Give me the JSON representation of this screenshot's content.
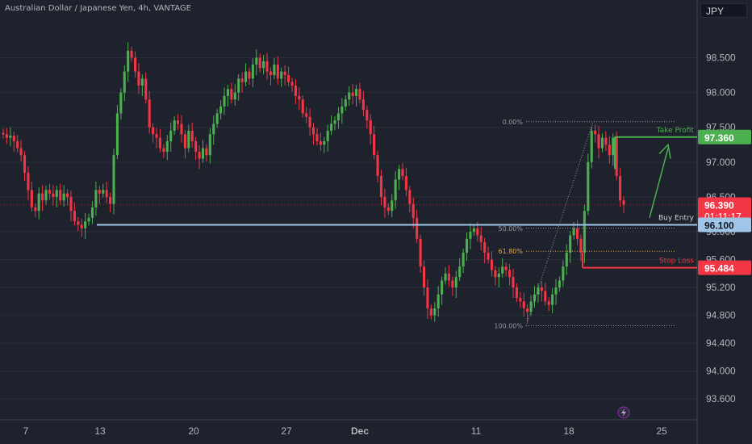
{
  "header": {
    "symbol_title": "Australian Dollar / Japanese Yen, 4h, VANTAGE",
    "currency": "JPY"
  },
  "colors": {
    "background": "#1e222d",
    "up": "#4caf50",
    "down": "#f23645",
    "buy_entry_line": "#9fc5e8",
    "take_profit": "#4caf50",
    "stop_loss": "#f23645",
    "fib_orange": "#e8a33d",
    "text": "#b2b5be"
  },
  "chart_data": {
    "type": "candlestick",
    "ylim": [
      93.3,
      99.05
    ],
    "y_ticks": [
      "98.500",
      "98.000",
      "97.500",
      "97.000",
      "96.500",
      "96.000",
      "95.600",
      "95.200",
      "94.800",
      "94.400",
      "94.000",
      "93.600"
    ],
    "x_ticks": [
      "7",
      "13",
      "20",
      "27",
      "Dec",
      "11",
      "18",
      "25"
    ],
    "price_markers": [
      {
        "label": "97.360",
        "value": 97.36,
        "color": "#4caf50"
      },
      {
        "label": "96.390",
        "value": 96.39,
        "color": "#f23645",
        "countdown": "01:11:17"
      },
      {
        "label": "96.100",
        "value": 96.1,
        "color": "#9fc5e8"
      },
      {
        "label": "95.484",
        "value": 95.484,
        "color": "#f23645"
      }
    ],
    "annotations": {
      "take_profit": {
        "label": "Take Profit",
        "value": 97.36
      },
      "buy_entry": {
        "label": "Buy Entry",
        "value": 96.1
      },
      "stop_loss": {
        "label": "Stop Loss",
        "value": 95.484
      }
    },
    "fibonacci": [
      {
        "label": "0.00%",
        "value": 97.58
      },
      {
        "label": "50.00%",
        "value": 96.05
      },
      {
        "label": "61.80%",
        "value": 95.72
      },
      {
        "label": "100.00%",
        "value": 94.65
      }
    ],
    "closes": [
      97.4,
      97.35,
      97.38,
      97.3,
      97.2,
      97.1,
      96.85,
      96.6,
      96.35,
      96.3,
      96.55,
      96.45,
      96.6,
      96.55,
      96.5,
      96.6,
      96.45,
      96.55,
      96.5,
      96.3,
      96.15,
      96.1,
      96.05,
      96.15,
      96.2,
      96.35,
      96.6,
      96.55,
      96.6,
      96.5,
      96.4,
      97.1,
      97.7,
      98.0,
      98.3,
      98.6,
      98.5,
      98.3,
      98.1,
      98.2,
      97.9,
      97.5,
      97.4,
      97.35,
      97.2,
      97.15,
      97.3,
      97.45,
      97.6,
      97.55,
      97.4,
      97.2,
      97.45,
      97.3,
      97.15,
      97.05,
      97.2,
      97.1,
      97.4,
      97.55,
      97.7,
      97.8,
      97.95,
      98.05,
      97.9,
      98.0,
      98.2,
      98.15,
      98.3,
      98.2,
      98.4,
      98.5,
      98.35,
      98.45,
      98.3,
      98.25,
      98.4,
      98.2,
      98.3,
      98.25,
      98.15,
      98.1,
      97.95,
      97.9,
      97.7,
      97.65,
      97.5,
      97.4,
      97.3,
      97.25,
      97.3,
      97.45,
      97.55,
      97.6,
      97.7,
      97.8,
      97.9,
      98.0,
      97.95,
      98.05,
      97.9,
      97.75,
      97.6,
      97.4,
      97.1,
      96.8,
      96.5,
      96.35,
      96.3,
      96.45,
      96.75,
      96.9,
      96.8,
      96.6,
      96.4,
      96.2,
      95.9,
      95.5,
      95.2,
      94.9,
      94.8,
      94.9,
      95.1,
      95.3,
      95.4,
      95.3,
      95.2,
      95.35,
      95.5,
      95.7,
      95.9,
      96.0,
      96.05,
      95.95,
      95.85,
      95.7,
      95.6,
      95.45,
      95.35,
      95.4,
      95.5,
      95.45,
      95.35,
      95.2,
      95.05,
      95.0,
      94.9,
      94.85,
      95.0,
      95.1,
      95.2,
      95.15,
      95.0,
      94.95,
      95.1,
      95.2,
      95.3,
      95.5,
      95.7,
      95.95,
      96.05,
      95.9,
      95.7,
      96.3,
      97.0,
      97.45,
      97.4,
      97.2,
      97.35,
      97.25,
      97.1,
      97.35,
      96.8,
      96.45,
      96.39
    ]
  },
  "footer": {
    "icon": "lightning-icon"
  }
}
